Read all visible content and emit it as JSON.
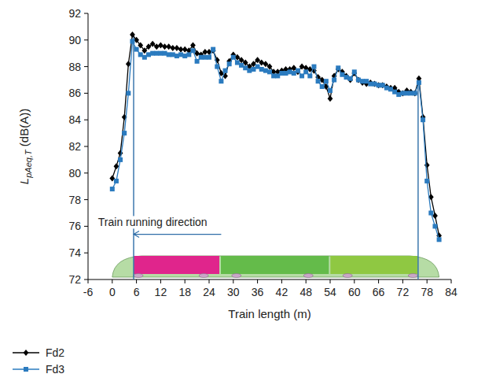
{
  "chart_data": {
    "type": "line",
    "x_label": "Train length (m)",
    "y_label": "LpAeq,T (dB(A))",
    "xlim": [
      -6,
      84
    ],
    "xticks": [
      -6,
      0,
      6,
      12,
      18,
      24,
      30,
      36,
      42,
      48,
      54,
      60,
      66,
      72,
      78,
      84
    ],
    "ylim": [
      72,
      92
    ],
    "yticks": [
      72,
      74,
      76,
      78,
      80,
      82,
      84,
      86,
      88,
      90,
      92
    ],
    "grid": false,
    "legend": "bottom",
    "x": [
      0,
      1,
      2,
      3,
      4,
      5,
      6,
      7,
      8,
      9,
      10,
      11,
      12,
      13,
      14,
      15,
      16,
      17,
      18,
      19,
      20,
      21,
      22,
      23,
      24,
      25,
      26,
      27,
      28,
      29,
      30,
      31,
      32,
      33,
      34,
      35,
      36,
      37,
      38,
      39,
      40,
      41,
      42,
      43,
      44,
      45,
      46,
      47,
      48,
      49,
      50,
      51,
      52,
      53,
      54,
      55,
      56,
      57,
      58,
      59,
      60,
      61,
      62,
      63,
      64,
      65,
      66,
      67,
      68,
      69,
      70,
      71,
      72,
      73,
      74,
      75,
      76,
      77,
      78,
      79,
      80,
      81
    ],
    "series": [
      {
        "name": "Fd2",
        "color": "#000000",
        "marker": "diamond",
        "values": [
          79.6,
          80.5,
          81.5,
          84.2,
          88.2,
          90.4,
          90.0,
          89.6,
          89.2,
          89.5,
          89.7,
          89.5,
          89.6,
          89.5,
          89.5,
          89.4,
          89.4,
          89.3,
          89.3,
          89.2,
          89.6,
          89.0,
          88.9,
          89.1,
          89.1,
          89.2,
          88.5,
          87.5,
          87.3,
          88.4,
          88.9,
          88.7,
          88.5,
          88.3,
          88.0,
          88.2,
          88.5,
          88.3,
          88.2,
          88.0,
          87.6,
          87.6,
          87.7,
          87.8,
          87.8,
          87.9,
          87.6,
          88.0,
          87.9,
          87.8,
          87.7,
          87.2,
          87.0,
          86.5,
          85.6,
          87.3,
          87.8,
          87.6,
          87.3,
          87.0,
          87.5,
          87.0,
          86.8,
          86.7,
          86.8,
          86.7,
          86.6,
          86.6,
          86.5,
          86.4,
          86.4,
          86.1,
          86.0,
          86.2,
          86.1,
          86.0,
          87.1,
          84.2,
          80.6,
          78.2,
          76.8,
          75.3
        ]
      },
      {
        "name": "Fd3",
        "color": "#2b7bbf",
        "marker": "square",
        "values": [
          78.8,
          79.4,
          81.0,
          83.0,
          86.0,
          89.9,
          89.3,
          88.9,
          88.7,
          88.9,
          89.0,
          89.0,
          89.0,
          89.0,
          88.9,
          88.9,
          88.8,
          88.9,
          88.8,
          88.9,
          89.2,
          88.4,
          88.7,
          88.7,
          88.7,
          89.3,
          88.0,
          86.9,
          87.7,
          88.2,
          88.7,
          88.3,
          88.1,
          87.9,
          87.7,
          87.8,
          88.0,
          87.8,
          87.7,
          87.6,
          87.3,
          87.3,
          87.5,
          87.5,
          87.6,
          87.5,
          87.7,
          87.3,
          87.6,
          87.3,
          88.0,
          86.9,
          86.5,
          86.9,
          86.2,
          87.0,
          87.9,
          87.4,
          87.2,
          87.1,
          87.6,
          87.0,
          86.9,
          86.9,
          86.7,
          86.7,
          86.6,
          86.6,
          86.4,
          86.3,
          86.1,
          85.9,
          86.0,
          86.0,
          86.0,
          86.0,
          86.8,
          84.0,
          79.4,
          77.0,
          76.0,
          75.0
        ]
      }
    ],
    "reference_lines": [
      {
        "x": 5.3,
        "y": [
          72,
          90.4
        ]
      },
      {
        "x": 75.8,
        "y": [
          72,
          87.2
        ]
      }
    ],
    "annotations": [
      {
        "text": "Train running direction",
        "x": -3.5,
        "y": 76.0,
        "arrow": {
          "x_start": 27,
          "x_end": 5.3,
          "y": 75.4
        }
      }
    ]
  }
}
